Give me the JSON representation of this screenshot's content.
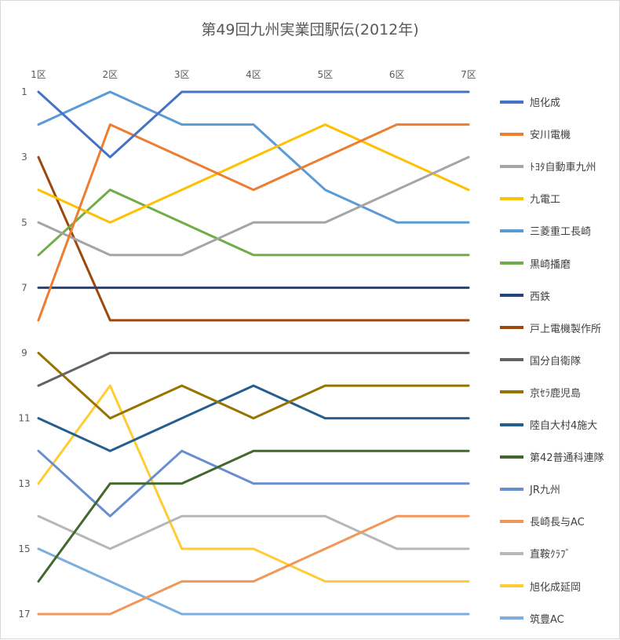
{
  "chart_data": {
    "type": "line",
    "title": "第49回九州実業団駅伝(2012年)",
    "categories": [
      "1区",
      "2区",
      "3区",
      "4区",
      "5区",
      "6区",
      "7区"
    ],
    "y_ticks": [
      "1",
      "3",
      "5",
      "7",
      "9",
      "11",
      "13",
      "15",
      "17"
    ],
    "ylim": [
      1,
      17
    ],
    "y_reversed": true,
    "x_axis_position": "top",
    "legend_position": "right",
    "grid": false,
    "series": [
      {
        "name": "旭化成",
        "color": "#4472c4",
        "values": [
          1,
          3,
          1,
          1,
          1,
          1,
          1
        ]
      },
      {
        "name": "安川電機",
        "color": "#ed7d31",
        "values": [
          8,
          2,
          3,
          4,
          3,
          2,
          2
        ]
      },
      {
        "name": "ﾄﾖﾀ自動車九州",
        "color": "#a5a5a5",
        "values": [
          5,
          6,
          6,
          5,
          5,
          4,
          3
        ]
      },
      {
        "name": "九電工",
        "color": "#ffc000",
        "values": [
          4,
          5,
          4,
          3,
          2,
          3,
          4
        ]
      },
      {
        "name": "三菱重工長崎",
        "color": "#5b9bd5",
        "values": [
          2,
          1,
          2,
          2,
          4,
          5,
          5
        ]
      },
      {
        "name": "黒崎播磨",
        "color": "#70ad47",
        "values": [
          6,
          4,
          5,
          6,
          6,
          6,
          6
        ]
      },
      {
        "name": "西鉄",
        "color": "#264478",
        "values": [
          7,
          7,
          7,
          7,
          7,
          7,
          7
        ]
      },
      {
        "name": "戸上電機製作所",
        "color": "#9e480e",
        "values": [
          3,
          8,
          8,
          8,
          8,
          8,
          8
        ]
      },
      {
        "name": "国分自衛隊",
        "color": "#636363",
        "values": [
          10,
          9,
          9,
          9,
          9,
          9,
          9
        ]
      },
      {
        "name": "京ｾﾗ鹿児島",
        "color": "#997300",
        "values": [
          9,
          11,
          10,
          11,
          10,
          10,
          10
        ]
      },
      {
        "name": "陸自大村4施大",
        "color": "#255e91",
        "values": [
          11,
          12,
          11,
          10,
          11,
          11,
          11
        ]
      },
      {
        "name": "第42普通科連隊",
        "color": "#43682b",
        "values": [
          16,
          13,
          13,
          12,
          12,
          12,
          12
        ]
      },
      {
        "name": "JR九州",
        "color": "#698ed0",
        "values": [
          12,
          14,
          12,
          13,
          13,
          13,
          13
        ]
      },
      {
        "name": "長崎長与AC",
        "color": "#f1975a",
        "values": [
          17,
          17,
          16,
          16,
          15,
          14,
          14
        ]
      },
      {
        "name": "直鞍ｸﾗﾌﾞ",
        "color": "#b7b7b7",
        "values": [
          14,
          15,
          14,
          14,
          14,
          15,
          15
        ]
      },
      {
        "name": "旭化成延岡",
        "color": "#ffcd33",
        "values": [
          13,
          10,
          15,
          15,
          16,
          16,
          16
        ]
      },
      {
        "name": "筑豊AC",
        "color": "#7cafdd",
        "values": [
          15,
          16,
          17,
          17,
          17,
          17,
          17
        ]
      }
    ]
  }
}
